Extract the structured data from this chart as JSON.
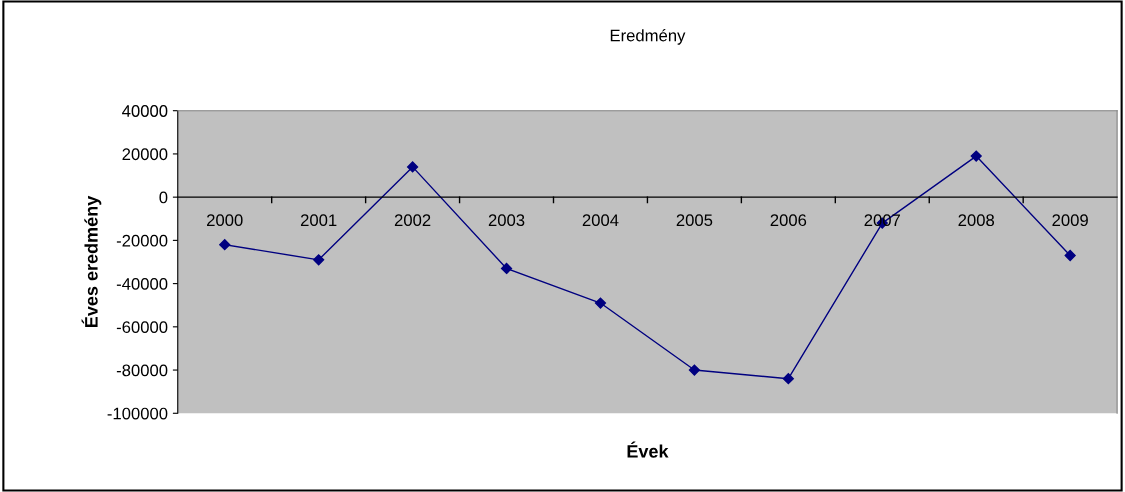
{
  "chart_data": {
    "type": "line",
    "title": "Eredmény",
    "xlabel": "Évek",
    "ylabel": "Éves eredmény",
    "categories": [
      "2000",
      "2001",
      "2002",
      "2003",
      "2004",
      "2005",
      "2006",
      "2007",
      "2008",
      "2009"
    ],
    "series": [
      {
        "color": "#000080",
        "values": [
          -22000,
          -29000,
          14000,
          -33000,
          -49000,
          -80000,
          -84000,
          -12000,
          19000,
          -27000
        ]
      }
    ],
    "ylim": [
      -100000,
      40000
    ],
    "yticks": [
      -100000,
      -80000,
      -60000,
      -40000,
      -20000,
      0,
      20000,
      40000
    ],
    "marker": "diamond",
    "line_style": "solid",
    "grid": false
  }
}
